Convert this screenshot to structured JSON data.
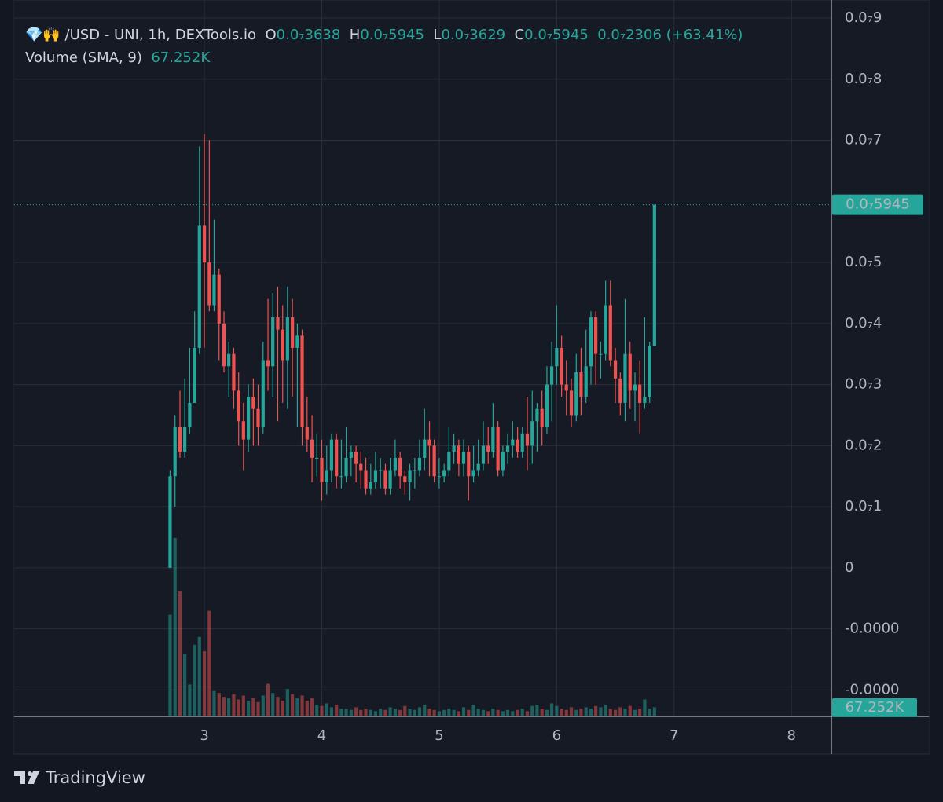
{
  "chart_data": {
    "type": "candlestick",
    "header": {
      "symbol": "💎🙌 /USD - UNI, 1h, DEXTools.io",
      "open_key": "O",
      "open": "0.0₇3638",
      "high_key": "H",
      "high": "0.0₇5945",
      "low_key": "L",
      "low": "0.0₇3629",
      "close_key": "C",
      "close": "0.0₇5945",
      "change": "0.0₇2306",
      "change_percent": "(+63.41%)"
    },
    "volume_title": "Volume (SMA, 9)",
    "volume_value": "67.252K",
    "up_color": "#26a69a",
    "down_color": "#ef5350",
    "grid": true,
    "xlim": [
      1.38,
      8.34
    ],
    "xticks": [
      3,
      4,
      5,
      6,
      7,
      8
    ],
    "ylim": [
      -2.432e-08,
      9.296e-08
    ],
    "yticks": [
      {
        "value": -2e-08,
        "label": "-0.0000"
      },
      {
        "value": -1e-08,
        "label": "-0.0000"
      },
      0,
      {
        "value": 1e-08,
        "label": "0.0₇1"
      },
      {
        "value": 2e-08,
        "label": "0.0₇2"
      },
      {
        "value": 3e-08,
        "label": "0.0₇3"
      },
      {
        "value": 4e-08,
        "label": "0.0₇4"
      },
      {
        "value": 5e-08,
        "label": "0.0₇5"
      },
      {
        "value": 7e-08,
        "label": "0.0₇7"
      },
      {
        "value": 8e-08,
        "label": "0.0₇8"
      },
      {
        "value": 9e-08,
        "label": "0.0₇9"
      }
    ],
    "price_line": {
      "value": 5.945e-08,
      "label": "0.0₇5945"
    },
    "volume_line": {
      "value": 67252,
      "label": "67.252K"
    },
    "volume_lim": [
      0,
      5500000
    ],
    "x": [
      2.708,
      2.75,
      2.792,
      2.833,
      2.875,
      2.917,
      2.958,
      3,
      3.042,
      3.083,
      3.125,
      3.167,
      3.208,
      3.25,
      3.292,
      3.333,
      3.375,
      3.417,
      3.458,
      3.5,
      3.542,
      3.583,
      3.625,
      3.667,
      3.708,
      3.75,
      3.792,
      3.833,
      3.875,
      3.917,
      3.958,
      4,
      4.042,
      4.083,
      4.125,
      4.167,
      4.208,
      4.25,
      4.292,
      4.333,
      4.375,
      4.417,
      4.458,
      4.5,
      4.542,
      4.583,
      4.625,
      4.667,
      4.708,
      4.75,
      4.792,
      4.833,
      4.875,
      4.917,
      4.958,
      5,
      5.042,
      5.083,
      5.125,
      5.167,
      5.208,
      5.25,
      5.292,
      5.333,
      5.375,
      5.417,
      5.458,
      5.5,
      5.542,
      5.583,
      5.625,
      5.667,
      5.708,
      5.75,
      5.792,
      5.833,
      5.875,
      5.917,
      5.958,
      6,
      6.042,
      6.083,
      6.125,
      6.167,
      6.208,
      6.25,
      6.292,
      6.333,
      6.375,
      6.417,
      6.458,
      6.5,
      6.542,
      6.583,
      6.625,
      6.667,
      6.708,
      6.75,
      6.792,
      6.833
    ],
    "open": [
      0,
      1.5e-08,
      2.3e-08,
      1.9e-08,
      2.3e-08,
      2.7e-08,
      3.6e-08,
      5.6e-08,
      5e-08,
      4.3e-08,
      4.8e-08,
      4e-08,
      3.3e-08,
      3.5e-08,
      2.9e-08,
      2.4e-08,
      2.1e-08,
      2.8e-08,
      2.6e-08,
      2.3e-08,
      3.4e-08,
      3.3e-08,
      4.1e-08,
      3.9e-08,
      3.4e-08,
      4.1e-08,
      3.6e-08,
      3.8e-08,
      2.3e-08,
      2.1e-08,
      1.8e-08,
      1.8e-08,
      1.4e-08,
      1.6e-08,
      2.1e-08,
      1.5e-08,
      1.5e-08,
      1.8e-08,
      1.9e-08,
      1.7e-08,
      1.6e-08,
      1.3e-08,
      1.4e-08,
      1.6e-08,
      1.6e-08,
      1.3e-08,
      1.6e-08,
      1.8e-08,
      1.5e-08,
      1.4e-08,
      1.6e-08,
      1.6e-08,
      1.8e-08,
      2.1e-08,
      2e-08,
      1.5e-08,
      1.5e-08,
      1.6e-08,
      1.9e-08,
      2e-08,
      1.7e-08,
      1.9e-08,
      1.5e-08,
      1.6e-08,
      1.7e-08,
      2e-08,
      1.9e-08,
      2.3e-08,
      1.6e-08,
      1.9e-08,
      2e-08,
      2.1e-08,
      1.9e-08,
      2.2e-08,
      2e-08,
      2.4e-08,
      2.6e-08,
      2.3e-08,
      3e-08,
      3.3e-08,
      3.6e-08,
      3e-08,
      2.9e-08,
      2.5e-08,
      3.2e-08,
      2.8e-08,
      3.3e-08,
      4.1e-08,
      3.5e-08,
      3.5e-08,
      4.3e-08,
      3.4e-08,
      3.1e-08,
      2.7e-08,
      3.5e-08,
      2.9e-08,
      3e-08,
      2.7e-08,
      2.8e-08,
      3.638e-08
    ],
    "high": [
      1.6e-08,
      2.5e-08,
      2.9e-08,
      3.1e-08,
      3.6e-08,
      4.2e-08,
      6.9e-08,
      7.1e-08,
      7e-08,
      5.7e-08,
      4.9e-08,
      4.2e-08,
      3.7e-08,
      3.6e-08,
      3.2e-08,
      2.7e-08,
      3e-08,
      3.1e-08,
      3e-08,
      3.7e-08,
      4.4e-08,
      4.5e-08,
      4.6e-08,
      4.3e-08,
      4.6e-08,
      4.4e-08,
      4e-08,
      3.9e-08,
      2.8e-08,
      2.5e-08,
      2.2e-08,
      2.1e-08,
      2e-08,
      2.2e-08,
      2.2e-08,
      2.1e-08,
      2.3e-08,
      2e-08,
      2e-08,
      1.9e-08,
      1.8e-08,
      1.7e-08,
      1.9e-08,
      1.8e-08,
      1.7e-08,
      1.8e-08,
      2.1e-08,
      1.9e-08,
      1.6e-08,
      1.7e-08,
      1.8e-08,
      2.1e-08,
      2.6e-08,
      2.4e-08,
      2.1e-08,
      1.8e-08,
      1.7e-08,
      2.3e-08,
      2.2e-08,
      2.1e-08,
      2.1e-08,
      2e-08,
      2e-08,
      2.1e-08,
      2.4e-08,
      2.3e-08,
      2.7e-08,
      2.4e-08,
      2e-08,
      2.2e-08,
      2.4e-08,
      2.3e-08,
      2.3e-08,
      2.8e-08,
      2.9e-08,
      2.7e-08,
      2.9e-08,
      3.3e-08,
      3.7e-08,
      4.3e-08,
      3.8e-08,
      3.4e-08,
      3.1e-08,
      3.5e-08,
      3.6e-08,
      3.9e-08,
      4.2e-08,
      4.2e-08,
      3.7e-08,
      4.7e-08,
      4.7e-08,
      3.6e-08,
      3.2e-08,
      4.4e-08,
      3.7e-08,
      3.2e-08,
      3.4e-08,
      4.1e-08,
      3.7e-08,
      5.945e-08
    ],
    "low": [
      0,
      1e-08,
      1.8e-08,
      1.8e-08,
      2.2e-08,
      2.7e-08,
      3.5e-08,
      3.6e-08,
      4.2e-08,
      4.2e-08,
      3.4e-08,
      3.2e-08,
      2.8e-08,
      2.6e-08,
      2e-08,
      1.6e-08,
      1.9e-08,
      2e-08,
      2e-08,
      2.2e-08,
      2.9e-08,
      2.8e-08,
      2.4e-08,
      2.7e-08,
      2.6e-08,
      2.8e-08,
      2.3e-08,
      2e-08,
      1.9e-08,
      1.4e-08,
      1.5e-08,
      1.1e-08,
      1.2e-08,
      1.4e-08,
      1.3e-08,
      1.3e-08,
      1.4e-08,
      1.5e-08,
      1.4e-08,
      1.3e-08,
      1.2e-08,
      1.2e-08,
      1.3e-08,
      1.3e-08,
      1.2e-08,
      1.2e-08,
      1.5e-08,
      1.3e-08,
      1.2e-08,
      1.1e-08,
      1.3e-08,
      1.5e-08,
      1.6e-08,
      1.5e-08,
      1.4e-08,
      1.3e-08,
      1.4e-08,
      1.5e-08,
      1.7e-08,
      1.5e-08,
      1.5e-08,
      1.1e-08,
      1.4e-08,
      1.5e-08,
      1.6e-08,
      1.7e-08,
      1.8e-08,
      1.5e-08,
      1.5e-08,
      1.7e-08,
      1.8e-08,
      1.8e-08,
      1.8e-08,
      1.6e-08,
      1.7e-08,
      1.9e-08,
      2e-08,
      2.2e-08,
      2.4e-08,
      3e-08,
      2.8e-08,
      2.5e-08,
      2.3e-08,
      2.4e-08,
      2.5e-08,
      2.7e-08,
      3e-08,
      3e-08,
      3.1e-08,
      3.4e-08,
      3.3e-08,
      2.7e-08,
      2.5e-08,
      2.4e-08,
      2.6e-08,
      2.4e-08,
      2.2e-08,
      2.6e-08,
      2.7e-08,
      3.629e-08
    ],
    "close": [
      1.5e-08,
      2.3e-08,
      1.9e-08,
      2.3e-08,
      2.7e-08,
      3.6e-08,
      5.6e-08,
      5e-08,
      4.3e-08,
      4.8e-08,
      4e-08,
      3.3e-08,
      3.5e-08,
      2.9e-08,
      2.4e-08,
      2.1e-08,
      2.8e-08,
      2.6e-08,
      2.3e-08,
      3.4e-08,
      3.3e-08,
      4.1e-08,
      3.9e-08,
      3.4e-08,
      4.1e-08,
      3.6e-08,
      3.8e-08,
      2.3e-08,
      2.1e-08,
      1.8e-08,
      1.8e-08,
      1.4e-08,
      1.6e-08,
      2.1e-08,
      1.5e-08,
      1.5e-08,
      1.8e-08,
      1.9e-08,
      1.7e-08,
      1.6e-08,
      1.3e-08,
      1.4e-08,
      1.6e-08,
      1.6e-08,
      1.3e-08,
      1.6e-08,
      1.8e-08,
      1.5e-08,
      1.4e-08,
      1.6e-08,
      1.6e-08,
      1.8e-08,
      2.1e-08,
      2e-08,
      1.5e-08,
      1.5e-08,
      1.6e-08,
      1.9e-08,
      2e-08,
      1.7e-08,
      1.9e-08,
      1.5e-08,
      1.6e-08,
      1.7e-08,
      2e-08,
      1.9e-08,
      2.3e-08,
      1.6e-08,
      1.9e-08,
      2e-08,
      2.1e-08,
      1.9e-08,
      2.2e-08,
      2e-08,
      2.4e-08,
      2.6e-08,
      2.3e-08,
      3e-08,
      3.3e-08,
      3.6e-08,
      3e-08,
      2.9e-08,
      2.5e-08,
      3.2e-08,
      2.8e-08,
      3.3e-08,
      4.1e-08,
      3.5e-08,
      3.5e-08,
      4.3e-08,
      3.4e-08,
      3.1e-08,
      2.7e-08,
      3.5e-08,
      2.9e-08,
      3e-08,
      2.7e-08,
      2.8e-08,
      3.638e-08,
      5.945e-08
    ],
    "volume": [
      780000,
      1370000,
      960000,
      480000,
      245000,
      550000,
      610000,
      500000,
      810000,
      195000,
      180000,
      150000,
      140000,
      170000,
      130000,
      160000,
      120000,
      140000,
      110000,
      160000,
      250000,
      180000,
      150000,
      120000,
      210000,
      170000,
      140000,
      160000,
      120000,
      140000,
      90000,
      80000,
      100000,
      70000,
      90000,
      60000,
      60000,
      50000,
      70000,
      50000,
      60000,
      50000,
      40000,
      60000,
      50000,
      70000,
      60000,
      50000,
      80000,
      60000,
      50000,
      70000,
      90000,
      60000,
      50000,
      40000,
      50000,
      60000,
      50000,
      40000,
      70000,
      50000,
      90000,
      60000,
      50000,
      40000,
      60000,
      50000,
      40000,
      50000,
      40000,
      50000,
      60000,
      40000,
      80000,
      90000,
      60000,
      50000,
      100000,
      80000,
      60000,
      50000,
      70000,
      50000,
      60000,
      70000,
      60000,
      80000,
      70000,
      90000,
      60000,
      50000,
      70000,
      60000,
      80000,
      50000,
      60000,
      130000,
      60000,
      70000
    ],
    "watermark": "TradingView"
  }
}
